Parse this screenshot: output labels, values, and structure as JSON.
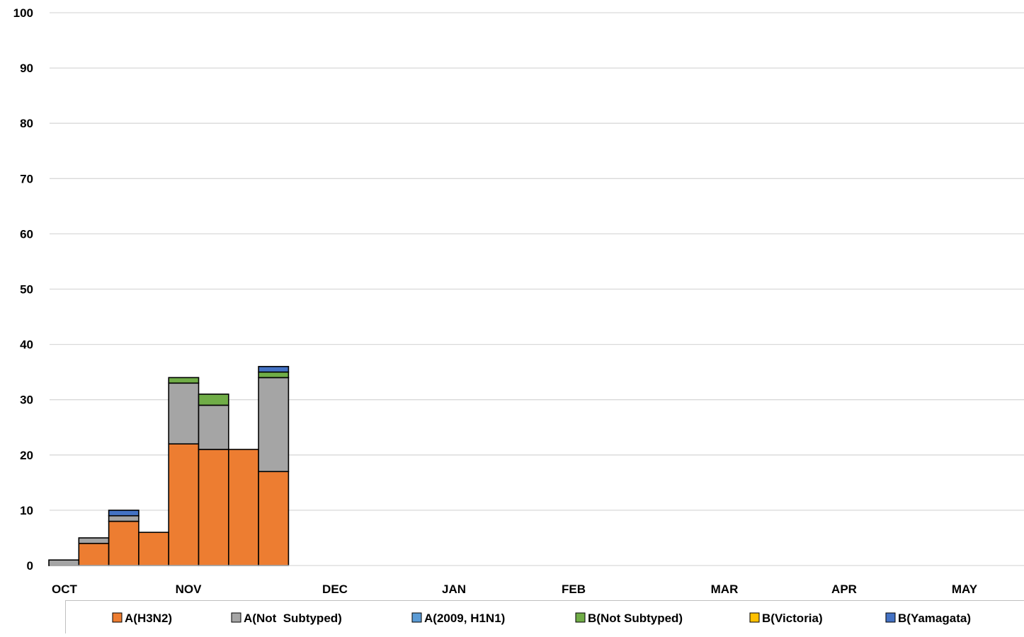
{
  "chart_data": {
    "type": "bar",
    "stacked": true,
    "ylim": [
      0,
      100
    ],
    "yticks": [
      0,
      10,
      20,
      30,
      40,
      50,
      60,
      70,
      80,
      90,
      100
    ],
    "grid": true,
    "legend_position": "bottom",
    "month_labels": [
      "OCT",
      "NOV",
      "DEC",
      "JAN",
      "FEB",
      "MAR",
      "APR",
      "MAY"
    ],
    "series": [
      {
        "name": "A(H3N2)",
        "color": "#ED7D31",
        "values": [
          0,
          4,
          8,
          6,
          22,
          21,
          21,
          17
        ]
      },
      {
        "name": "A(Not  Subtyped)",
        "color": "#A5A5A5",
        "values": [
          1,
          1,
          1,
          0,
          11,
          8,
          0,
          17
        ]
      },
      {
        "name": "A(2009, H1N1)",
        "color": "#5B9BD5",
        "values": [
          0,
          0,
          0,
          0,
          0,
          0,
          0,
          0
        ]
      },
      {
        "name": "B(Not Subtyped)",
        "color": "#70AD47",
        "values": [
          0,
          0,
          0,
          0,
          1,
          2,
          0,
          1
        ]
      },
      {
        "name": "B(Victoria)",
        "color": "#FFC000",
        "values": [
          0,
          0,
          0,
          0,
          0,
          0,
          0,
          0
        ]
      },
      {
        "name": "B(Yamagata)",
        "color": "#4472C4",
        "values": [
          0,
          0,
          1,
          0,
          0,
          0,
          0,
          1
        ]
      }
    ]
  }
}
